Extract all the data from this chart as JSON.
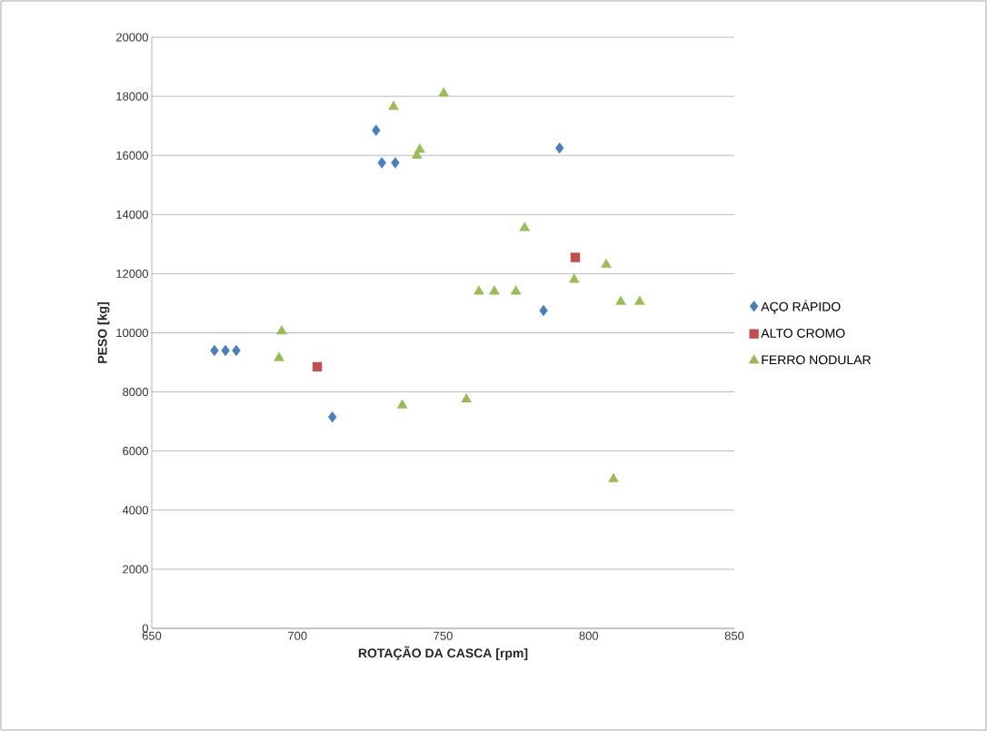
{
  "chart_data": {
    "type": "scatter",
    "xlabel": "ROTAÇÃO DA CASCA [rpm]",
    "ylabel": "PESO [kg]",
    "xlim": [
      650,
      850
    ],
    "xticks": [
      650,
      700,
      750,
      800,
      850
    ],
    "ylim": [
      0,
      20000
    ],
    "yticks": [
      0,
      2000,
      4000,
      6000,
      8000,
      10000,
      12000,
      14000,
      16000,
      18000,
      20000
    ],
    "grid": "y",
    "legend": "right",
    "series": [
      {
        "name": "AÇO RÁPIDO",
        "color": "#4a7ebb",
        "marker": "diamond",
        "x": [
          671.5,
          675.3,
          679,
          727,
          729,
          733.6,
          790,
          784.5,
          712
        ],
        "values": [
          9400,
          9400,
          9400,
          16850,
          15750,
          15750,
          16250,
          10750,
          7150
        ]
      },
      {
        "name": "ALTO CROMO",
        "color": "#c0504d",
        "marker": "square",
        "x": [
          706.8,
          795.4
        ],
        "values": [
          8850,
          12550
        ]
      },
      {
        "name": "FERRO NODULAR",
        "color": "#9bbb59",
        "marker": "triangle",
        "x": [
          750.2,
          733,
          742,
          741,
          778,
          762.3,
          767.6,
          775,
          795,
          806,
          811,
          817.5,
          694.6,
          693.7,
          736,
          758,
          808.5
        ],
        "values": [
          18100,
          17650,
          16200,
          16000,
          13550,
          11400,
          11400,
          11400,
          11800,
          12300,
          11050,
          11050,
          10050,
          9150,
          7550,
          7750,
          5050
        ]
      }
    ]
  }
}
